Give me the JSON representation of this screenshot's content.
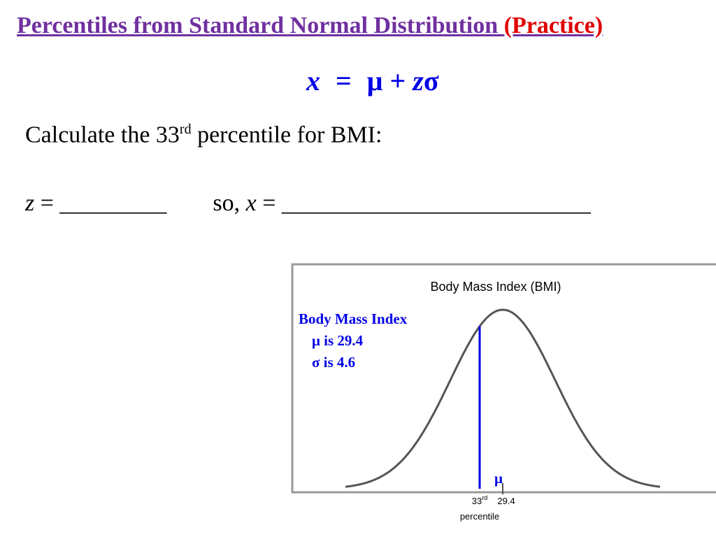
{
  "slide": {
    "title_main": "Percentiles from Standard Normal Distribution ",
    "title_tag": "(Practice)",
    "formula": {
      "x": "x",
      "equals": "=",
      "mu_plus": "μ +",
      "z": "z",
      "sigma": "σ"
    },
    "question": {
      "before": "Calculate the 33",
      "sup": "rd",
      "after": " percentile for BMI:"
    },
    "answers": {
      "z_var": "z",
      "z_rest": " = _________",
      "so_prefix": "so, ",
      "x_var": "x",
      "x_rest": " = __________________________"
    }
  },
  "chart_data": {
    "type": "line",
    "title": "Body Mass Index (BMI)",
    "annotation": {
      "heading": "Body Mass Index",
      "mu_text": "μ is 29.4",
      "sigma_text": "σ is 4.6"
    },
    "distribution": "normal",
    "mean": 29.4,
    "sd": 4.6,
    "x_range": [
      15.6,
      43.2
    ],
    "percentile_marker": {
      "percentile": 0.33,
      "label_number": "33",
      "label_sup": "rd",
      "label_word": "percentile",
      "color": "#0000e6"
    },
    "mu_marker": {
      "symbol": "μ",
      "tick_label": "29.4"
    },
    "grid": false,
    "curve_color": "#555555"
  }
}
